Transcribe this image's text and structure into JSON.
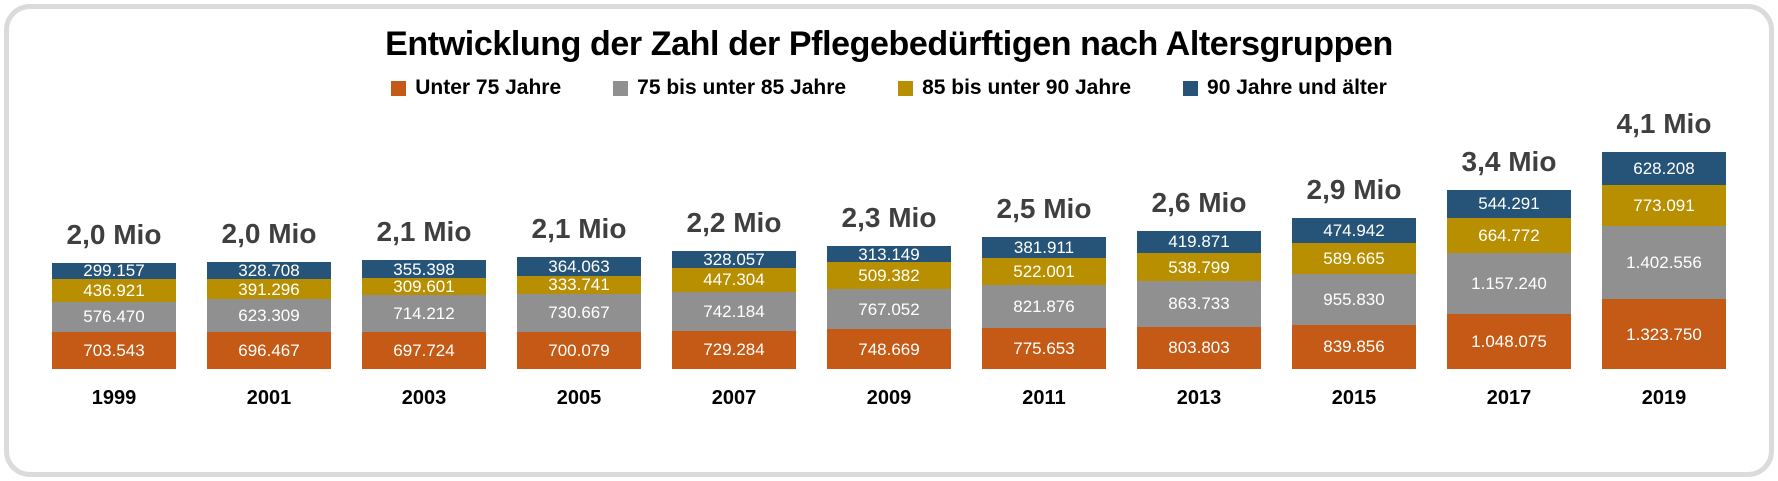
{
  "title": "Entwicklung der Zahl der Pflegebedürftigen nach Altersgruppen",
  "colors": {
    "under75": "#C45A15",
    "from75to85": "#909090",
    "from85to90": "#B78F00",
    "over90": "#265478",
    "total_label": "#3f3f3f",
    "frame_border": "#dbdbdb",
    "segment_text": "#ffffff"
  },
  "chart_data": {
    "type": "bar",
    "stacked": true,
    "title": "Entwicklung der Zahl der Pflegebedürftigen nach Altersgruppen",
    "legend_position": "top",
    "value_label_format": "de-thousands-dot",
    "categories": [
      "1999",
      "2001",
      "2003",
      "2005",
      "2007",
      "2009",
      "2011",
      "2013",
      "2015",
      "2017",
      "2019"
    ],
    "totals_labels": [
      "2,0 Mio",
      "2,0 Mio",
      "2,1 Mio",
      "2,1 Mio",
      "2,2 Mio",
      "2,3 Mio",
      "2,5 Mio",
      "2,6 Mio",
      "2,9 Mio",
      "3,4 Mio",
      "4,1 Mio"
    ],
    "series": [
      {
        "name": "Unter 75 Jahre",
        "color": "#C45A15",
        "values": [
          703543,
          696467,
          697724,
          700079,
          729284,
          748669,
          775653,
          803803,
          839856,
          1048075,
          1323750
        ]
      },
      {
        "name": "75 bis unter 85 Jahre",
        "color": "#909090",
        "values": [
          576470,
          623309,
          714212,
          730667,
          742184,
          767052,
          821876,
          863733,
          955830,
          1157240,
          1402556
        ]
      },
      {
        "name": "85 bis unter 90 Jahre",
        "color": "#B78F00",
        "values": [
          436921,
          391296,
          309601,
          333741,
          447304,
          509382,
          522001,
          538799,
          589665,
          664772,
          773091
        ]
      },
      {
        "name": "90 Jahre und älter",
        "color": "#265478",
        "values": [
          299157,
          328708,
          355398,
          364063,
          328057,
          313149,
          381911,
          419871,
          474942,
          544291,
          628208
        ]
      }
    ]
  }
}
